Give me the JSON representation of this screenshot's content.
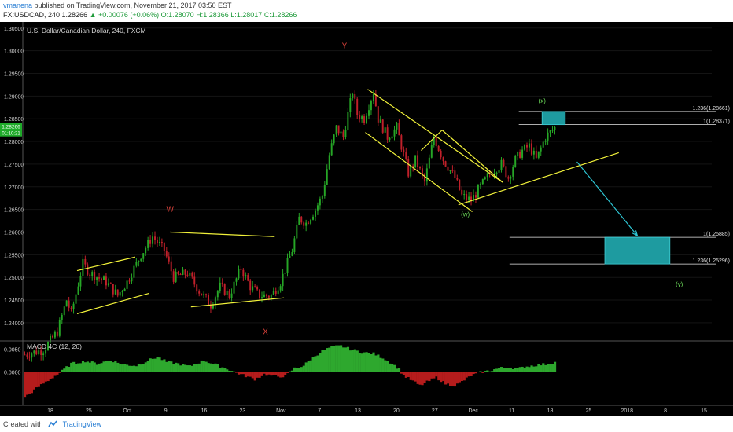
{
  "header": {
    "author": "vmanena",
    "published": "published on TradingView.com, November 21, 2017 03:50 EST",
    "symbol": "FX:USDCAD, 240",
    "price": "1.28266",
    "change": "+0.00076 (+0.06%)",
    "open": "O:1.28070",
    "high": "H:1.28366",
    "low": "L:1.28017",
    "close": "C:1.28266"
  },
  "footer": {
    "created_with": "Created with",
    "brand": "TradingView"
  },
  "colors": {
    "bull": "#26a626",
    "bear": "#c0202a",
    "annotation": "#f2f23a",
    "wave_label_red": "#d9413a",
    "wave_label_green": "#6fe05c",
    "target_box": "#1e9ba0",
    "arrow": "#2ec6d4",
    "macd_pos": "#2ea82e",
    "macd_neg": "#b51c1c"
  },
  "chart_data": {
    "type": "candlestick",
    "title": "U.S. Dollar/Canadian Dollar, 240, FXCM",
    "ylim": [
      1.236,
      1.306
    ],
    "y_ticks": [
      "1.30500",
      "1.30000",
      "1.29500",
      "1.29000",
      "1.28500",
      "1.28000",
      "1.27500",
      "1.27000",
      "1.26500",
      "1.26000",
      "1.25500",
      "1.25000",
      "1.24500",
      "1.24000"
    ],
    "x_ticks": [
      "18",
      "25",
      "Oct",
      "9",
      "16",
      "23",
      "Nov",
      "7",
      "13",
      "20",
      "27",
      "Dec",
      "11",
      "18",
      "25",
      "2018",
      "8",
      "15"
    ],
    "last_price_label": "1.28266",
    "countdown_label": "01:10:21",
    "path": [
      [
        0,
        1.233
      ],
      [
        8,
        1.234
      ],
      [
        14,
        1.238
      ],
      [
        18,
        1.245
      ],
      [
        20,
        1.242
      ],
      [
        25,
        1.253
      ],
      [
        28,
        1.251
      ],
      [
        35,
        1.249
      ],
      [
        40,
        1.246
      ],
      [
        44,
        1.249
      ],
      [
        50,
        1.255
      ],
      [
        55,
        1.259
      ],
      [
        60,
        1.256
      ],
      [
        64,
        1.25
      ],
      [
        70,
        1.251
      ],
      [
        75,
        1.247
      ],
      [
        80,
        1.244
      ],
      [
        84,
        1.248
      ],
      [
        88,
        1.246
      ],
      [
        93,
        1.252
      ],
      [
        97,
        1.248
      ],
      [
        101,
        1.246
      ],
      [
        106,
        1.246
      ],
      [
        110,
        1.249
      ],
      [
        115,
        1.256
      ],
      [
        118,
        1.263
      ],
      [
        121,
        1.262
      ],
      [
        125,
        1.265
      ],
      [
        128,
        1.268
      ],
      [
        131,
        1.277
      ],
      [
        134,
        1.283
      ],
      [
        137,
        1.281
      ],
      [
        141,
        1.291
      ],
      [
        143,
        1.286
      ],
      [
        146,
        1.285
      ],
      [
        150,
        1.291
      ],
      [
        152,
        1.285
      ],
      [
        156,
        1.281
      ],
      [
        160,
        1.283
      ],
      [
        165,
        1.273
      ],
      [
        168,
        1.276
      ],
      [
        172,
        1.271
      ],
      [
        176,
        1.281
      ],
      [
        180,
        1.276
      ],
      [
        185,
        1.272
      ],
      [
        188,
        1.268
      ],
      [
        192,
        1.267
      ],
      [
        196,
        1.27
      ],
      [
        200,
        1.273
      ],
      [
        205,
        1.275
      ],
      [
        208,
        1.272
      ],
      [
        211,
        1.276
      ],
      [
        214,
        1.278
      ],
      [
        217,
        1.279
      ],
      [
        220,
        1.276
      ],
      [
        224,
        1.281
      ],
      [
        228,
        1.283
      ]
    ],
    "macd": {
      "label": "MACD 4C (12, 26)",
      "ylim": [
        -0.0068,
        0.0068
      ],
      "y_ticks": [
        "0.0050",
        "0.0000"
      ],
      "profile": [
        [
          0,
          -0.0055
        ],
        [
          8,
          -0.0025
        ],
        [
          15,
          -0.0002
        ],
        [
          20,
          0.0018
        ],
        [
          26,
          0.0024
        ],
        [
          31,
          0.0018
        ],
        [
          37,
          0.0026
        ],
        [
          42,
          0.0016
        ],
        [
          48,
          0.0014
        ],
        [
          54,
          0.0027
        ],
        [
          57,
          0.0033
        ],
        [
          61,
          0.0022
        ],
        [
          66,
          0.0018
        ],
        [
          71,
          0.0012
        ],
        [
          77,
          0.0025
        ],
        [
          82,
          0.0016
        ],
        [
          87,
          0.0007
        ],
        [
          91,
          -0.0002
        ],
        [
          95,
          -0.0009
        ],
        [
          99,
          -0.0016
        ],
        [
          103,
          -0.0005
        ],
        [
          108,
          -0.001
        ],
        [
          112,
          -0.0009
        ],
        [
          116,
          0.0008
        ],
        [
          120,
          0.0014
        ],
        [
          124,
          0.0032
        ],
        [
          128,
          0.0046
        ],
        [
          132,
          0.0055
        ],
        [
          136,
          0.0057
        ],
        [
          140,
          0.005
        ],
        [
          145,
          0.0043
        ],
        [
          150,
          0.004
        ],
        [
          154,
          0.0031
        ],
        [
          158,
          0.0018
        ],
        [
          161,
          0.0006
        ],
        [
          163,
          -0.0008
        ],
        [
          167,
          -0.002
        ],
        [
          170,
          -0.003
        ],
        [
          173,
          -0.0022
        ],
        [
          177,
          -0.0012
        ],
        [
          181,
          -0.0026
        ],
        [
          185,
          -0.003
        ],
        [
          188,
          -0.0021
        ],
        [
          192,
          -0.0008
        ],
        [
          196,
          -0.0001
        ],
        [
          200,
          0.0003
        ],
        [
          204,
          0.0008
        ],
        [
          208,
          0.0011
        ],
        [
          212,
          0.0007
        ],
        [
          216,
          0.0012
        ],
        [
          220,
          0.0015
        ],
        [
          224,
          0.0017
        ],
        [
          228,
          0.0021
        ]
      ]
    },
    "annotations": {
      "wave_labels": [
        {
          "text": "W",
          "x": 63,
          "y": 1.2645
        },
        {
          "text": "X",
          "x": 104,
          "y": 1.2375
        },
        {
          "text": "Y",
          "x": 138,
          "y": 1.3005
        },
        {
          "text": "(w)",
          "x": 190,
          "y": 1.2635
        },
        {
          "text": "(x)",
          "x": 223,
          "y": 1.2885
        },
        {
          "text": "(y)",
          "x": 282,
          "y": 1.248
        }
      ],
      "fib_levels": [
        {
          "text": "1.236(1.28661)",
          "value": 1.28661,
          "x_start": 213
        },
        {
          "text": "1(1.28371)",
          "value": 1.28371,
          "x_start": 213
        },
        {
          "text": "1(1.25885)",
          "value": 1.25885,
          "x_start": 209
        },
        {
          "text": "1.236(1.25296)",
          "value": 1.25296,
          "x_start": 209
        }
      ],
      "target_zones": [
        {
          "x0": 223,
          "x1": 233,
          "y0": 1.28371,
          "y1": 1.28661
        },
        {
          "x0": 250,
          "x1": 278,
          "y0": 1.25296,
          "y1": 1.25885
        }
      ],
      "arrow": {
        "x0": 238,
        "y0": 1.2755,
        "x1": 264,
        "y1": 1.2592
      },
      "trendlines": [
        {
          "x0": 23,
          "y0": 1.2515,
          "x1": 48,
          "y1": 1.2545
        },
        {
          "x0": 23,
          "y0": 1.242,
          "x1": 54,
          "y1": 1.2465
        },
        {
          "x0": 63,
          "y0": 1.26,
          "x1": 108,
          "y1": 1.259
        },
        {
          "x0": 72,
          "y0": 1.2435,
          "x1": 112,
          "y1": 1.2455
        },
        {
          "x0": 148,
          "y0": 1.2915,
          "x1": 206,
          "y1": 1.271
        },
        {
          "x0": 147,
          "y0": 1.282,
          "x1": 193,
          "y1": 1.2645
        },
        {
          "x0": 171,
          "y0": 1.278,
          "x1": 180,
          "y1": 1.2825
        },
        {
          "x0": 180,
          "y0": 1.2825,
          "x1": 206,
          "y1": 1.271
        },
        {
          "x0": 187,
          "y0": 1.266,
          "x1": 256,
          "y1": 1.2775
        }
      ]
    }
  }
}
